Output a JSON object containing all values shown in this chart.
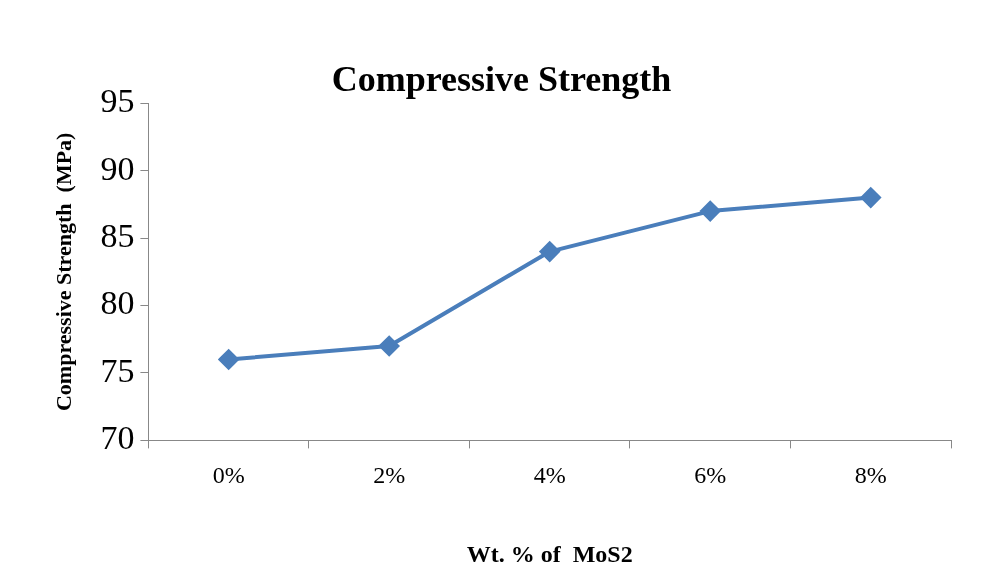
{
  "chart_data": {
    "type": "line",
    "title": "Compressive Strength",
    "xlabel": "Wt. % of  MoS2",
    "ylabel": "Compressive Strength  (MPa)",
    "categories": [
      "0%",
      "2%",
      "4%",
      "6%",
      "8%"
    ],
    "series": [
      {
        "color": "#4a7ebb",
        "values": [
          76,
          77,
          84,
          87,
          88
        ]
      }
    ],
    "ylim": [
      70,
      95
    ],
    "yticks": [
      70,
      75,
      80,
      85,
      90,
      95
    ],
    "grid": false,
    "legend": false,
    "marker": "diamond",
    "line_style": "solid"
  }
}
